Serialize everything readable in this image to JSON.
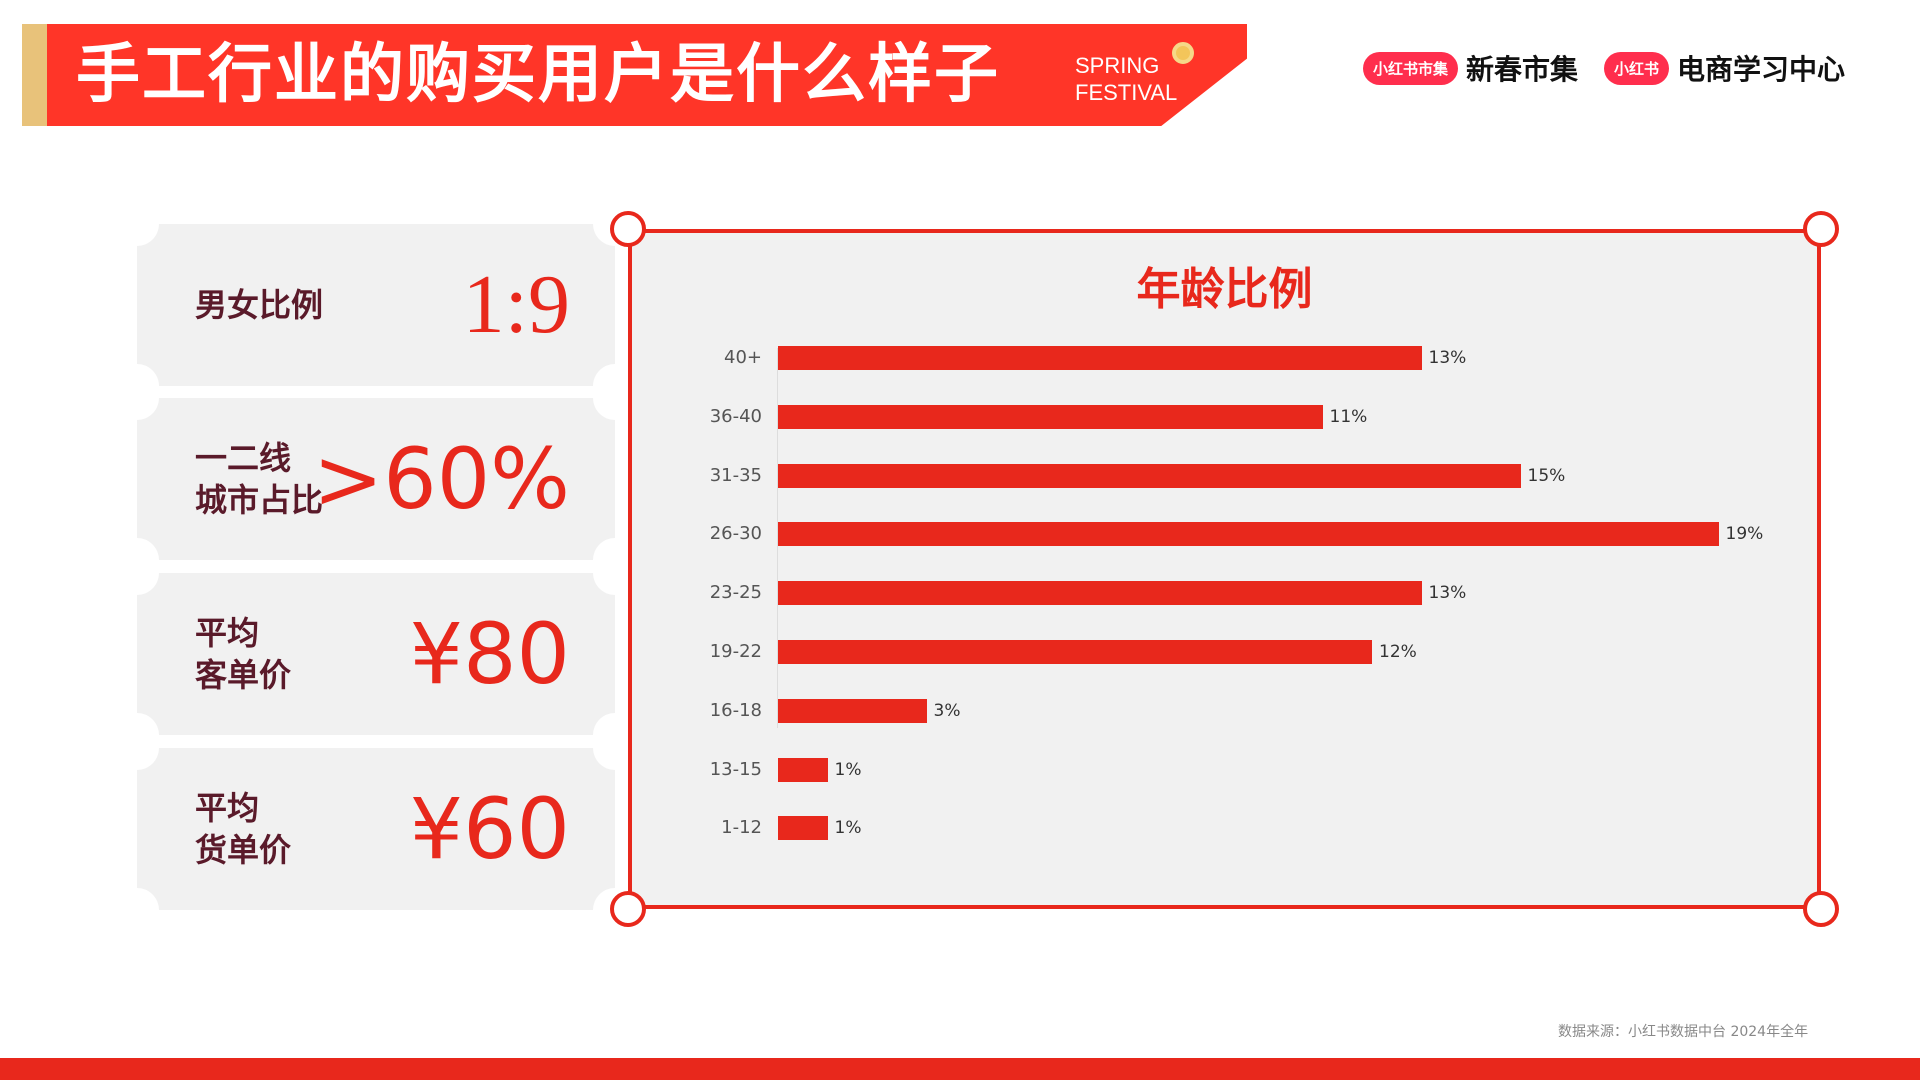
{
  "header": {
    "title": "手工行业的购买用户是什么样子",
    "badge_line1": "SPRING",
    "badge_line2": "FESTIVAL"
  },
  "logos": [
    {
      "pill": "小红书市集",
      "text": "新春市集"
    },
    {
      "pill": "小红书",
      "text": "电商学习中心"
    }
  ],
  "cards": [
    {
      "label_lines": [
        "男女比例"
      ],
      "value": "1:9"
    },
    {
      "label_lines": [
        "一二线",
        "城市占比"
      ],
      "value": ">60%"
    },
    {
      "label_lines": [
        "平均",
        "客单价"
      ],
      "value": "¥80"
    },
    {
      "label_lines": [
        "平均",
        "货单价"
      ],
      "value": "¥60"
    }
  ],
  "colors": {
    "accent": "#e8281c",
    "banner": "#ff3528",
    "gold": "#e8c27a",
    "card_bg": "#f1f1f1",
    "label": "#5a1a2a"
  },
  "chart_data": {
    "type": "bar",
    "orientation": "horizontal",
    "title": "年龄比例",
    "categories": [
      "40+",
      "36-40",
      "31-35",
      "26-30",
      "23-25",
      "19-22",
      "16-18",
      "13-15",
      "1-12"
    ],
    "values": [
      13,
      11,
      15,
      19,
      13,
      12,
      3,
      1,
      1
    ],
    "labels": [
      "13%",
      "11%",
      "15%",
      "19%",
      "13%",
      "12%",
      "3%",
      "1%",
      "1%"
    ],
    "unit": "%",
    "grid": false,
    "legend": "none"
  },
  "source": "数据来源：小红书数据中台  2024年全年"
}
